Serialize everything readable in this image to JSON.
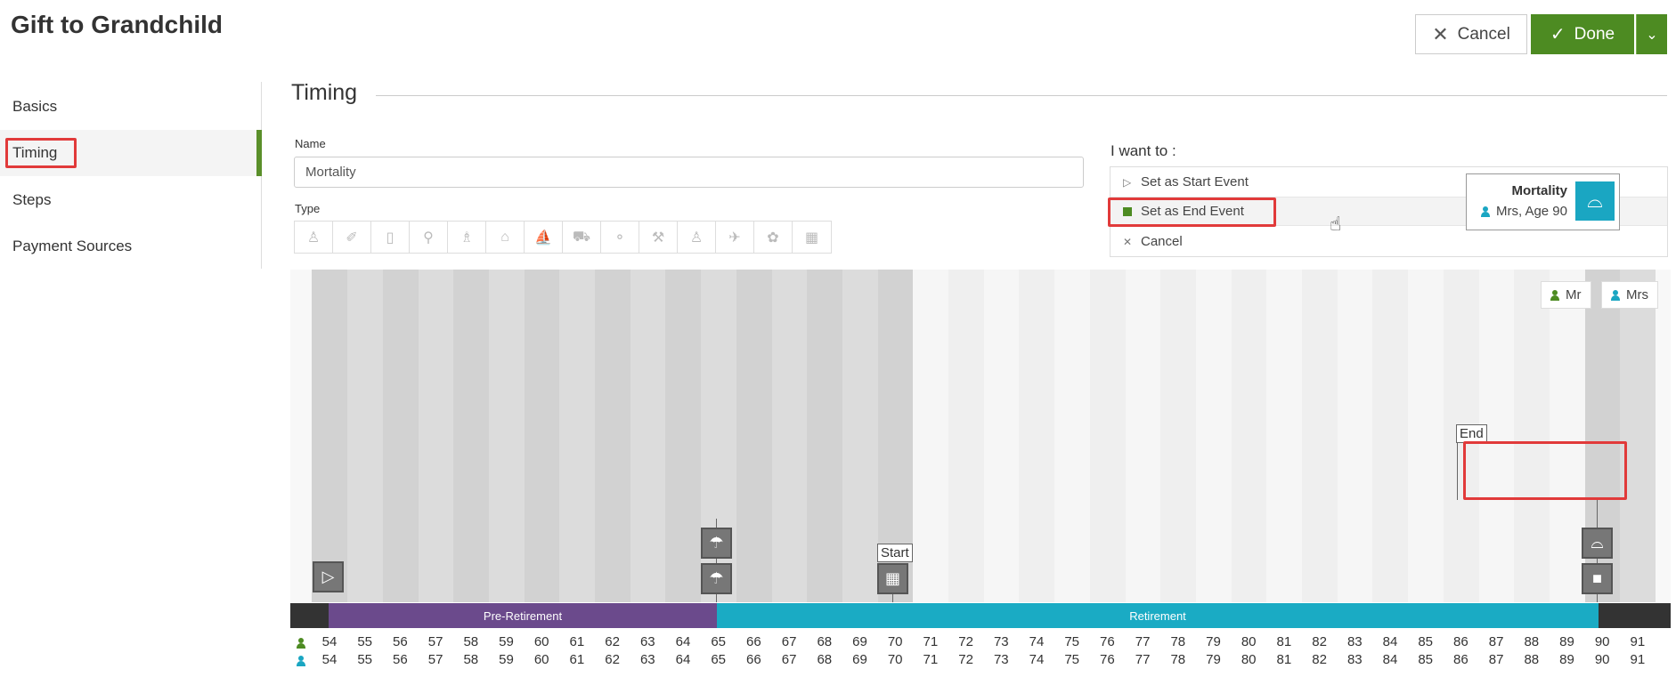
{
  "header": {
    "title": "Gift to Grandchild",
    "cancel_label": "Cancel",
    "done_label": "Done"
  },
  "sidebar": {
    "items": [
      {
        "label": "Basics",
        "active": false
      },
      {
        "label": "Timing",
        "active": true
      },
      {
        "label": "Steps",
        "active": false
      },
      {
        "label": "Payment Sources",
        "active": false
      }
    ]
  },
  "section": {
    "title": "Timing"
  },
  "form": {
    "name_label": "Name",
    "name_value": "Mortality",
    "type_label": "Type",
    "type_icons": [
      "baby-icon",
      "graduation-icon",
      "book-icon",
      "wedding-icon",
      "car-seat-icon",
      "home-icon",
      "boat-icon",
      "car-icon",
      "savings-icon",
      "paint-roller-icon",
      "person-icon",
      "plane-icon",
      "medical-icon",
      "calendar-icon"
    ]
  },
  "want": {
    "title": "I want to :",
    "options": [
      {
        "label": "Set as Start Event",
        "icon": "play-outline-icon"
      },
      {
        "label": "Set as End Event",
        "icon": "stop-square-icon"
      },
      {
        "label": "Cancel",
        "icon": "close-icon"
      }
    ]
  },
  "timeline": {
    "legend": [
      {
        "label": "Mr",
        "color": "#4d8b22"
      },
      {
        "label": "Mrs",
        "color": "#1aa6c2"
      }
    ],
    "ages": [
      54,
      55,
      56,
      57,
      58,
      59,
      60,
      61,
      62,
      63,
      64,
      65,
      66,
      67,
      68,
      69,
      70,
      71,
      72,
      73,
      74,
      75,
      76,
      77,
      78,
      79,
      80,
      81,
      82,
      83,
      84,
      85,
      86,
      87,
      88,
      89,
      90,
      91
    ],
    "phases": [
      {
        "label": "Pre-Retirement",
        "color": "#6b4a8c"
      },
      {
        "label": "Retirement",
        "color": "#1aabc4"
      }
    ],
    "start_flag": "Start",
    "end_flag": "End",
    "event_card": {
      "title": "Mortality",
      "subtitle": "Mrs, Age 90"
    }
  },
  "colors": {
    "accent": "#4d8b22",
    "highlight": "#e13a3a",
    "retirement": "#1aabc4",
    "pre_retirement": "#6b4a8c"
  }
}
